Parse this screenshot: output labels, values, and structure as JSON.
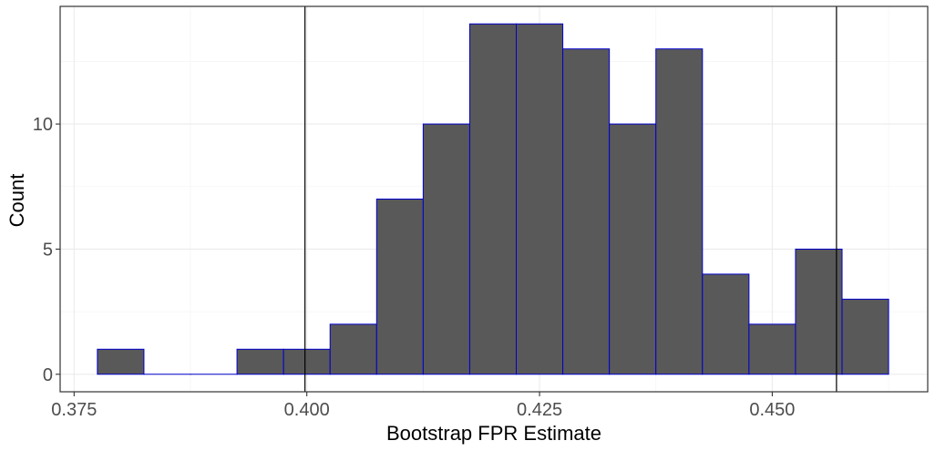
{
  "chart_data": {
    "type": "histogram",
    "title": "",
    "xlabel": "Bootstrap FPR Estimate",
    "ylabel": "Count",
    "xlim": [
      0.3735,
      0.4667
    ],
    "ylim": [
      -0.7,
      14.7
    ],
    "x_ticks": [
      {
        "value": 0.375,
        "label": "0.375"
      },
      {
        "value": 0.4,
        "label": "0.400"
      },
      {
        "value": 0.425,
        "label": "0.425"
      },
      {
        "value": 0.45,
        "label": "0.450"
      }
    ],
    "y_ticks": [
      {
        "value": 0,
        "label": "0"
      },
      {
        "value": 5,
        "label": "5"
      },
      {
        "value": 10,
        "label": "10"
      }
    ],
    "bin_width": 0.005,
    "bins": [
      {
        "x0": 0.3775,
        "x1": 0.3825,
        "count": 1
      },
      {
        "x0": 0.3825,
        "x1": 0.3875,
        "count": 0
      },
      {
        "x0": 0.3875,
        "x1": 0.3925,
        "count": 0
      },
      {
        "x0": 0.3925,
        "x1": 0.3975,
        "count": 1
      },
      {
        "x0": 0.3975,
        "x1": 0.4025,
        "count": 1
      },
      {
        "x0": 0.4025,
        "x1": 0.4075,
        "count": 2
      },
      {
        "x0": 0.4075,
        "x1": 0.4125,
        "count": 7
      },
      {
        "x0": 0.4125,
        "x1": 0.4175,
        "count": 10
      },
      {
        "x0": 0.4175,
        "x1": 0.4225,
        "count": 14
      },
      {
        "x0": 0.4225,
        "x1": 0.4275,
        "count": 14
      },
      {
        "x0": 0.4275,
        "x1": 0.4325,
        "count": 13
      },
      {
        "x0": 0.4325,
        "x1": 0.4375,
        "count": 10
      },
      {
        "x0": 0.4375,
        "x1": 0.4425,
        "count": 13
      },
      {
        "x0": 0.4425,
        "x1": 0.4475,
        "count": 4
      },
      {
        "x0": 0.4475,
        "x1": 0.4525,
        "count": 2
      },
      {
        "x0": 0.4525,
        "x1": 0.4575,
        "count": 5
      },
      {
        "x0": 0.4575,
        "x1": 0.4625,
        "count": 3
      }
    ],
    "reference_lines_x": [
      0.3998,
      0.4569
    ],
    "grid": true,
    "colors": {
      "bar_fill": "#595959",
      "bar_outline": "#0000cc",
      "reference_line": "#000000",
      "grid_major": "#ebebeb",
      "grid_minor": "#f5f5f5",
      "panel_border": "#333333"
    }
  }
}
